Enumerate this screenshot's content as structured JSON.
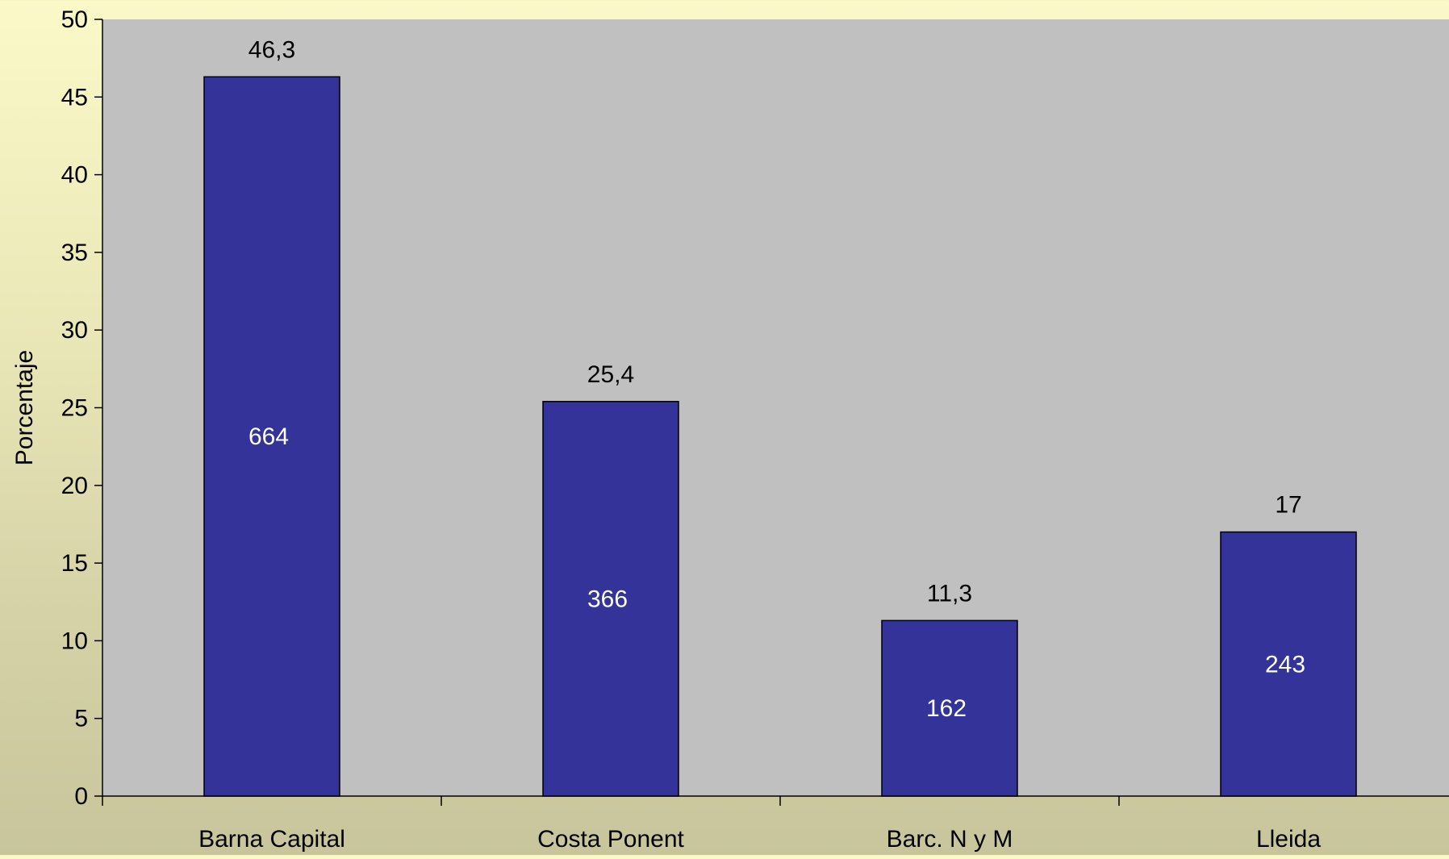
{
  "chart_data": {
    "type": "bar",
    "categories": [
      "Barna Capital",
      "Costa Ponent",
      "Barc. N y M",
      "Lleida"
    ],
    "values": [
      46.3,
      25.4,
      11.3,
      17
    ],
    "value_labels": [
      "46,3",
      "25,4",
      "11,3",
      "17"
    ],
    "inner_labels": [
      "664",
      "366",
      "162",
      "243"
    ],
    "title": "",
    "xlabel": "",
    "ylabel": "Porcentaje",
    "ylim": [
      0,
      50
    ],
    "yticks": [
      0,
      5,
      10,
      15,
      20,
      25,
      30,
      35,
      40,
      45,
      50
    ],
    "grid": false,
    "legend": "none",
    "colors": {
      "bar_fill": "#333399",
      "bar_stroke": "#000000",
      "plot_background": "#c0c0c0",
      "inner_label_text": "#ffffff",
      "text": "#000000"
    }
  }
}
